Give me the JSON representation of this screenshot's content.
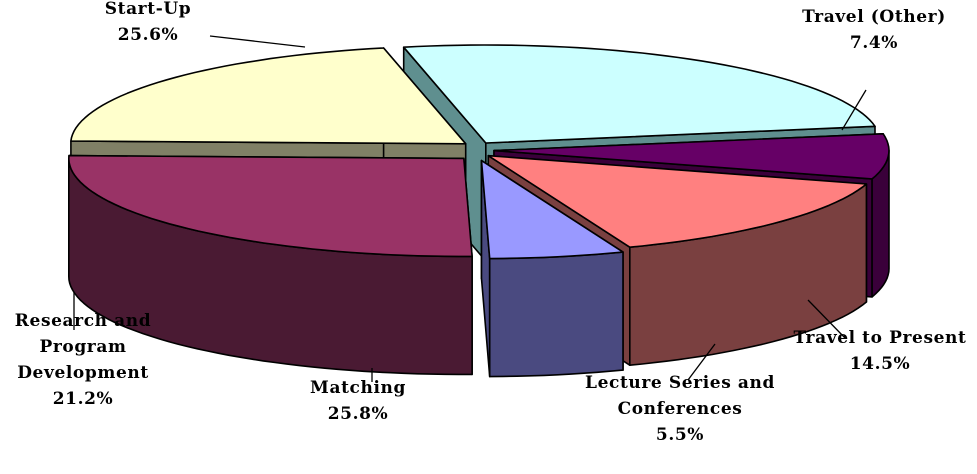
{
  "chart_data": {
    "type": "pie",
    "style": "3d-exploded",
    "legend": "none",
    "grid": false,
    "slices": [
      {
        "label": "Start-Up",
        "value": 25.6,
        "value_label": "25.6%",
        "color": "#ccffff",
        "side_color": "#5f8f8f"
      },
      {
        "label": "Travel (Other)",
        "value": 7.4,
        "value_label": "7.4%",
        "color": "#660066",
        "side_color": "#3a003a"
      },
      {
        "label": "Travel to Present",
        "value": 14.5,
        "value_label": "14.5%",
        "color": "#ff8080",
        "side_color": "#7a4040"
      },
      {
        "label": "Lecture Series and Conferences",
        "label_lines": [
          "Lecture Series and",
          "Conferences"
        ],
        "value": 5.5,
        "value_label": "5.5%",
        "color": "#9999ff",
        "side_color": "#4a4a80"
      },
      {
        "label": "Matching",
        "value": 25.8,
        "value_label": "25.8%",
        "color": "#993366",
        "side_color": "#4a1a33"
      },
      {
        "label": "Research and Program Development",
        "label_lines": [
          "Research and",
          "Program",
          "Development"
        ],
        "value": 21.2,
        "value_label": "21.2%",
        "color": "#ffffcc",
        "side_color": "#808066"
      }
    ]
  }
}
